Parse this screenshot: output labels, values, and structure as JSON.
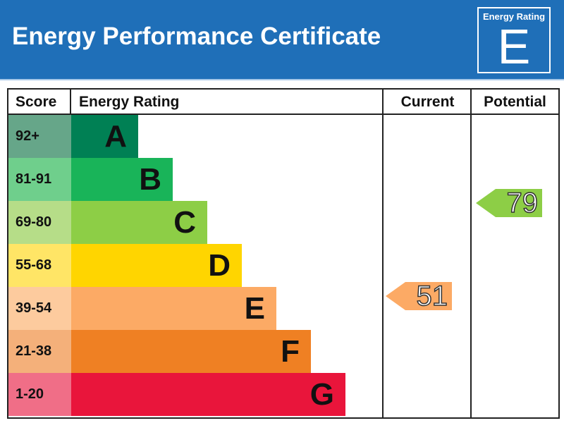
{
  "header": {
    "title": "Energy Performance Certificate",
    "badge_label": "Energy Rating",
    "badge_letter": "E",
    "background": "#1f6fb8"
  },
  "table": {
    "columns": [
      "Score",
      "Energy Rating",
      "Current",
      "Potential"
    ]
  },
  "chart_data": {
    "type": "bar",
    "title": "Energy Performance Certificate",
    "categories": [
      "A",
      "B",
      "C",
      "D",
      "E",
      "F",
      "G"
    ],
    "score_ranges": [
      "92+",
      "81-91",
      "69-80",
      "55-68",
      "39-54",
      "21-38",
      "1-20"
    ],
    "bar_colors": [
      "#008054",
      "#19b459",
      "#8dce46",
      "#ffd500",
      "#fcaa65",
      "#ef8023",
      "#e9153b"
    ],
    "score_cell_colors": [
      "#66a689",
      "#6fcf8c",
      "#b6dd88",
      "#ffe566",
      "#fdcb9e",
      "#f4b07a",
      "#f06e87"
    ],
    "relative_bar_lengths": [
      1,
      2,
      3,
      4,
      5,
      6,
      7
    ],
    "current": {
      "value": 51,
      "rating": "E",
      "color": "#fcaa65"
    },
    "potential": {
      "value": 79,
      "rating": "C",
      "color": "#8dce46"
    }
  }
}
